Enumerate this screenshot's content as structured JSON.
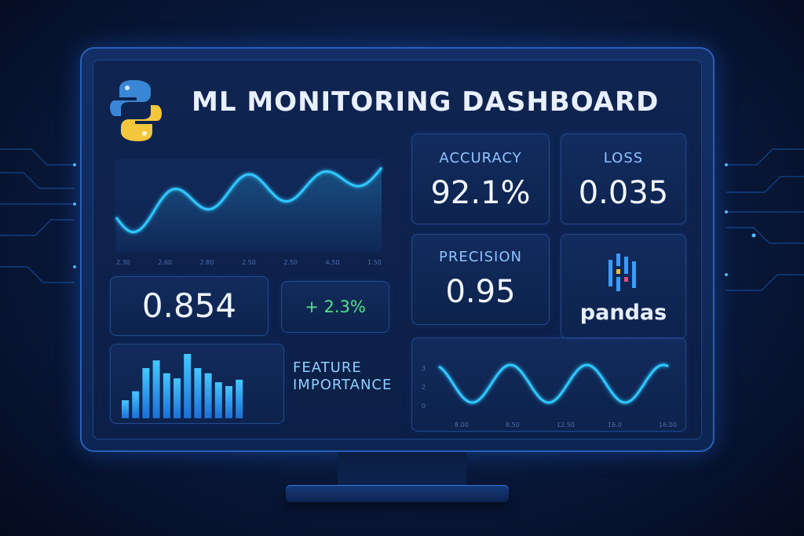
{
  "header": {
    "title": "ML MONITORING DASHBOARD",
    "logo_icon": "python-logo-icon"
  },
  "line_chart_top": {
    "x_ticks": [
      "2.30",
      "2.60",
      "2.80",
      "2.50",
      "2.50",
      "4.50",
      "1.50"
    ],
    "color": "#2fc7ff"
  },
  "metric_left": {
    "value": "0.854"
  },
  "metric_delta": {
    "value": "+ 2.3%",
    "color": "#4ee38a"
  },
  "feature_importance": {
    "label_line1": "FEATURE",
    "label_line2": "IMPORTANCE",
    "bars": [
      0.28,
      0.42,
      0.78,
      0.9,
      0.7,
      0.62,
      1.0,
      0.78,
      0.7,
      0.56,
      0.5,
      0.6
    ]
  },
  "cards": {
    "accuracy": {
      "label": "ACCURACY",
      "value": "92.1%"
    },
    "loss": {
      "label": "LOSS",
      "value": "0.035"
    },
    "precision": {
      "label": "PRECISION",
      "value": "0.95"
    },
    "pandas": {
      "label": "pandas",
      "icon": "pandas-logo-icon"
    }
  },
  "line_chart_bottom": {
    "y_ticks": [
      "3",
      "2",
      "0"
    ],
    "x_ticks": [
      "8.00",
      "8.50",
      "12.50",
      "16.0",
      "16.00"
    ],
    "color": "#2fc7ff"
  }
}
